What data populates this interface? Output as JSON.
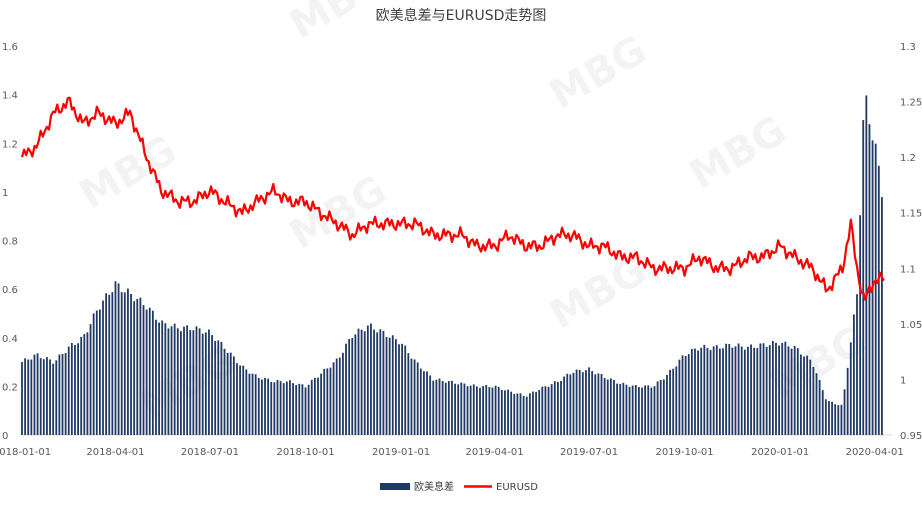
{
  "chart_data": {
    "type": "bar+line",
    "title": "欧美息差与EURUSD走势图",
    "watermark": "MBG",
    "x_ticks": [
      "2018-01-01",
      "2018-04-01",
      "2018-07-01",
      "2018-10-01",
      "2019-01-01",
      "2019-04-01",
      "2019-07-01",
      "2019-10-01",
      "2020-01-01",
      "2020-04-01"
    ],
    "left_axis": {
      "min": 0,
      "max": 1.6,
      "ticks": [
        "0",
        "0.2",
        "0.4",
        "0.6",
        "0.8",
        "1",
        "1.2",
        "1.4",
        "1.6"
      ]
    },
    "right_axis": {
      "min": 0.95,
      "max": 1.3,
      "ticks": [
        "0.95",
        "1",
        "1.05",
        "1.1",
        "1.15",
        "1.2",
        "1.25",
        "1.3"
      ]
    },
    "series": [
      {
        "name": "欧美息差",
        "type": "bar",
        "axis": "left",
        "color": "#1F3864",
        "x": [
          "2018-01-01",
          "2018-01-15",
          "2018-02-01",
          "2018-02-15",
          "2018-03-01",
          "2018-03-15",
          "2018-04-01",
          "2018-04-15",
          "2018-05-01",
          "2018-05-15",
          "2018-06-01",
          "2018-06-15",
          "2018-07-01",
          "2018-07-15",
          "2018-08-01",
          "2018-08-15",
          "2018-09-01",
          "2018-09-15",
          "2018-10-01",
          "2018-10-15",
          "2018-11-01",
          "2018-11-15",
          "2018-12-01",
          "2018-12-15",
          "2019-01-01",
          "2019-01-15",
          "2019-02-01",
          "2019-02-15",
          "2019-03-01",
          "2019-03-15",
          "2019-04-01",
          "2019-04-15",
          "2019-05-01",
          "2019-05-15",
          "2019-06-01",
          "2019-06-15",
          "2019-07-01",
          "2019-07-15",
          "2019-08-01",
          "2019-08-15",
          "2019-09-01",
          "2019-09-15",
          "2019-10-01",
          "2019-10-15",
          "2019-11-01",
          "2019-11-15",
          "2019-12-01",
          "2019-12-15",
          "2020-01-01",
          "2020-01-15",
          "2020-02-01",
          "2020-02-15",
          "2020-03-01",
          "2020-03-15",
          "2020-03-22",
          "2020-04-01",
          "2020-04-10"
        ],
        "values": [
          0.3,
          0.33,
          0.3,
          0.36,
          0.4,
          0.52,
          0.62,
          0.58,
          0.53,
          0.46,
          0.44,
          0.44,
          0.42,
          0.36,
          0.28,
          0.24,
          0.22,
          0.22,
          0.2,
          0.25,
          0.31,
          0.41,
          0.45,
          0.42,
          0.38,
          0.3,
          0.23,
          0.22,
          0.21,
          0.2,
          0.2,
          0.18,
          0.16,
          0.19,
          0.22,
          0.26,
          0.27,
          0.24,
          0.21,
          0.2,
          0.2,
          0.25,
          0.33,
          0.36,
          0.36,
          0.37,
          0.36,
          0.37,
          0.38,
          0.36,
          0.3,
          0.14,
          0.12,
          0.58,
          1.4,
          1.2,
          0.95
        ]
      },
      {
        "name": "EURUSD",
        "type": "line",
        "axis": "right",
        "color": "#FF0000",
        "x": [
          "2018-01-01",
          "2018-01-15",
          "2018-02-01",
          "2018-02-15",
          "2018-03-01",
          "2018-03-15",
          "2018-04-01",
          "2018-04-15",
          "2018-05-01",
          "2018-05-15",
          "2018-06-01",
          "2018-06-15",
          "2018-07-01",
          "2018-07-15",
          "2018-08-01",
          "2018-08-15",
          "2018-09-01",
          "2018-09-15",
          "2018-10-01",
          "2018-10-15",
          "2018-11-01",
          "2018-11-15",
          "2018-12-01",
          "2018-12-15",
          "2019-01-01",
          "2019-01-15",
          "2019-02-01",
          "2019-02-15",
          "2019-03-01",
          "2019-03-15",
          "2019-04-01",
          "2019-04-15",
          "2019-05-01",
          "2019-05-15",
          "2019-06-01",
          "2019-06-15",
          "2019-07-01",
          "2019-07-15",
          "2019-08-01",
          "2019-08-15",
          "2019-09-01",
          "2019-09-15",
          "2019-10-01",
          "2019-10-15",
          "2019-11-01",
          "2019-11-15",
          "2019-12-01",
          "2019-12-15",
          "2020-01-01",
          "2020-01-15",
          "2020-02-01",
          "2020-02-15",
          "2020-03-01",
          "2020-03-09",
          "2020-03-15",
          "2020-03-22",
          "2020-04-01",
          "2020-04-10"
        ],
        "values": [
          1.2,
          1.21,
          1.24,
          1.25,
          1.23,
          1.24,
          1.23,
          1.24,
          1.2,
          1.17,
          1.16,
          1.16,
          1.17,
          1.16,
          1.15,
          1.16,
          1.17,
          1.16,
          1.16,
          1.15,
          1.14,
          1.13,
          1.14,
          1.14,
          1.14,
          1.14,
          1.13,
          1.13,
          1.13,
          1.12,
          1.12,
          1.13,
          1.12,
          1.12,
          1.13,
          1.13,
          1.12,
          1.12,
          1.11,
          1.11,
          1.1,
          1.1,
          1.1,
          1.11,
          1.1,
          1.1,
          1.11,
          1.11,
          1.12,
          1.11,
          1.1,
          1.08,
          1.1,
          1.14,
          1.1,
          1.07,
          1.09,
          1.09
        ]
      }
    ],
    "legend": {
      "position": "bottom"
    },
    "grid": false
  }
}
